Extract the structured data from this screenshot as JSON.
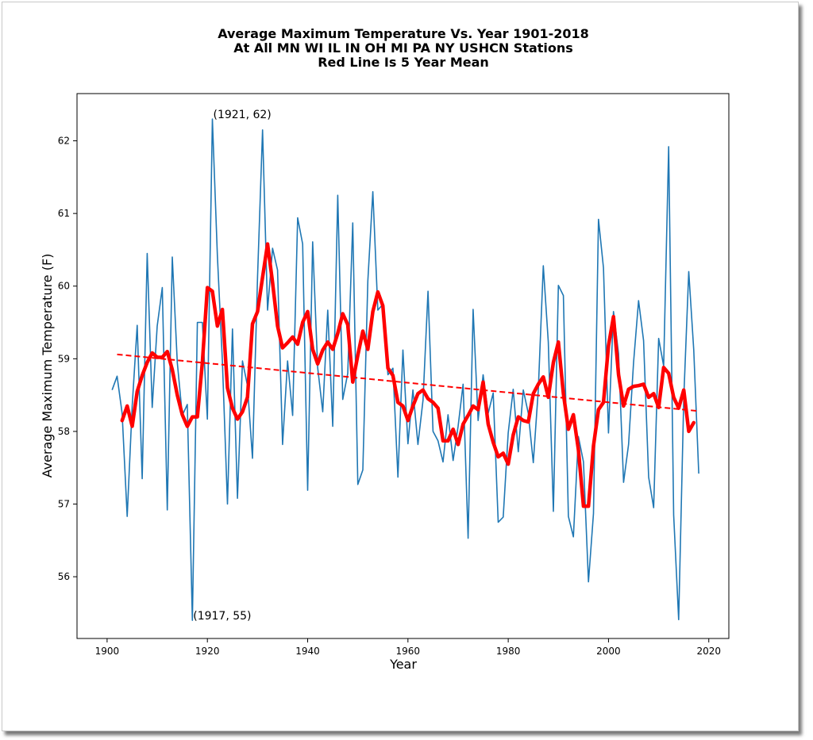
{
  "chart_data": {
    "type": "line",
    "title_lines": [
      "Average Maximum Temperature Vs. Year 1901-2018",
      "At All MN WI IL IN OH MI PA NY USHCN Stations",
      "Red Line Is 5 Year Mean"
    ],
    "xlabel": "Year",
    "ylabel": "Average Maximum Temperature (F)",
    "xlim": [
      1894,
      2024
    ],
    "ylim": [
      55.15,
      62.65
    ],
    "xticks": [
      1900,
      1920,
      1940,
      1960,
      1980,
      2000,
      2020
    ],
    "yticks": [
      56,
      57,
      58,
      59,
      60,
      61,
      62
    ],
    "grid": false,
    "annotations": [
      {
        "text": "(1921, 62)",
        "x": 1921,
        "y": 62.3
      },
      {
        "text": "(1917, 55)",
        "x": 1917,
        "y": 55.4
      }
    ],
    "annual": {
      "color": "#1f77b4",
      "x_start": 1901,
      "values": [
        58.57,
        58.76,
        58.25,
        56.83,
        58.35,
        59.46,
        57.35,
        60.45,
        58.33,
        59.45,
        59.98,
        56.92,
        60.4,
        58.95,
        58.22,
        58.37,
        55.4,
        59.5,
        59.5,
        58.17,
        62.3,
        60.42,
        58.97,
        57.0,
        59.41,
        57.08,
        58.97,
        58.63,
        57.63,
        60.13,
        62.15,
        59.67,
        60.52,
        60.22,
        57.82,
        58.97,
        58.22,
        60.94,
        60.58,
        57.19,
        60.61,
        58.88,
        58.27,
        59.67,
        58.07,
        61.25,
        58.44,
        58.8,
        60.87,
        57.27,
        57.47,
        60.07,
        61.3,
        59.67,
        59.75,
        58.78,
        58.87,
        57.37,
        59.12,
        57.83,
        58.57,
        57.82,
        58.43,
        59.93,
        58.0,
        57.87,
        57.58,
        58.23,
        57.6,
        58.07,
        58.65,
        56.53,
        59.68,
        58.15,
        58.78,
        58.25,
        58.53,
        56.75,
        56.82,
        57.98,
        58.58,
        57.72,
        58.57,
        58.25,
        57.57,
        58.57,
        60.28,
        59.23,
        56.9,
        60.01,
        59.87,
        56.83,
        56.55,
        57.93,
        57.58,
        55.93,
        56.87,
        60.92,
        60.25,
        57.98,
        59.65,
        59.07,
        57.3,
        57.82,
        58.95,
        59.8,
        59.25,
        57.37,
        56.95,
        59.28,
        58.9,
        61.92,
        56.85,
        55.41,
        58.45,
        60.2,
        59.12,
        57.42
      ]
    },
    "rolling_mean": {
      "color": "#ff0000",
      "x_start": 1903,
      "values": [
        58.15,
        58.35,
        58.07,
        58.55,
        58.77,
        58.95,
        59.08,
        59.02,
        59.02,
        59.1,
        58.85,
        58.5,
        58.23,
        58.07,
        58.2,
        58.2,
        58.95,
        59.98,
        59.93,
        59.45,
        59.68,
        58.6,
        58.32,
        58.17,
        58.27,
        58.47,
        59.48,
        59.65,
        60.12,
        60.58,
        60.05,
        59.45,
        59.15,
        59.22,
        59.3,
        59.2,
        59.5,
        59.65,
        59.13,
        58.93,
        59.12,
        59.23,
        59.13,
        59.35,
        59.62,
        59.47,
        58.68,
        59.05,
        59.38,
        59.13,
        59.65,
        59.92,
        59.73,
        58.87,
        58.77,
        58.4,
        58.35,
        58.15,
        58.35,
        58.52,
        58.57,
        58.45,
        58.4,
        58.32,
        57.87,
        57.87,
        58.03,
        57.82,
        58.1,
        58.22,
        58.35,
        58.3,
        58.68,
        58.1,
        57.85,
        57.65,
        57.7,
        57.55,
        57.95,
        58.2,
        58.15,
        58.13,
        58.52,
        58.65,
        58.75,
        58.47,
        58.95,
        59.23,
        58.52,
        58.03,
        58.23,
        57.75,
        56.97,
        56.97,
        57.8,
        58.3,
        58.4,
        59.18,
        59.58,
        58.78,
        58.35,
        58.58,
        58.62,
        58.63,
        58.65,
        58.47,
        58.52,
        58.33,
        58.88,
        58.8,
        58.47,
        58.32,
        58.57,
        58.0,
        58.12
      ]
    },
    "trend": {
      "color": "#ff0000",
      "style": "dashed",
      "x": [
        1902,
        2018
      ],
      "y": [
        59.06,
        58.28
      ]
    }
  }
}
